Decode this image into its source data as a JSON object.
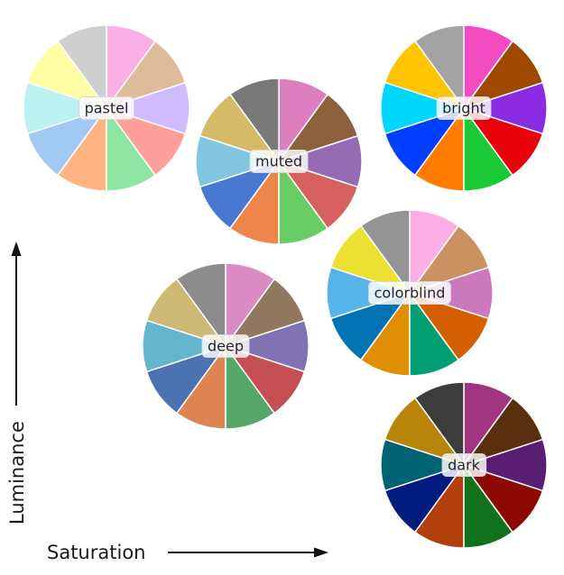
{
  "axes": {
    "x_label": "Saturation",
    "y_label": "Luminance"
  },
  "palettes": [
    {
      "name": "pastel",
      "colors": [
        "#a1c9f4",
        "#ffb482",
        "#8de5a1",
        "#ff9f9b",
        "#d0bbff",
        "#debb9b",
        "#fab0e4",
        "#cfcfcf",
        "#fffea3",
        "#b9f2f0"
      ]
    },
    {
      "name": "muted",
      "colors": [
        "#4878d0",
        "#ee854a",
        "#6acc64",
        "#d65f5f",
        "#956cb4",
        "#8c613c",
        "#dc7ec0",
        "#797979",
        "#d5bb67",
        "#82c6e2"
      ]
    },
    {
      "name": "bright",
      "colors": [
        "#023eff",
        "#ff7c00",
        "#1ac938",
        "#e8000b",
        "#8b2be2",
        "#9f4800",
        "#f14cc1",
        "#a3a3a3",
        "#ffc400",
        "#00d7ff"
      ]
    },
    {
      "name": "colorblind",
      "colors": [
        "#0173b2",
        "#de8f05",
        "#029e73",
        "#d55e00",
        "#cc78bc",
        "#ca9161",
        "#fbafe4",
        "#949494",
        "#ece133",
        "#56b4e9"
      ]
    },
    {
      "name": "deep",
      "colors": [
        "#4c72b0",
        "#dd8452",
        "#55a868",
        "#c44e52",
        "#8172b3",
        "#937860",
        "#da8bc3",
        "#8c8c8c",
        "#ccb974",
        "#64b5cd"
      ]
    },
    {
      "name": "dark",
      "colors": [
        "#001c7f",
        "#b1400d",
        "#12711c",
        "#8c0800",
        "#591e71",
        "#592f0d",
        "#a23582",
        "#3c3c3c",
        "#b8850a",
        "#006374"
      ]
    }
  ]
}
